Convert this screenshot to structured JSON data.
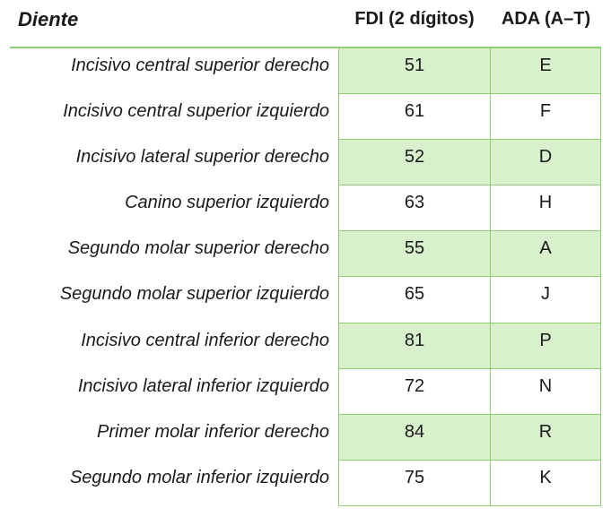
{
  "header": {
    "col_tooth": "Diente",
    "col_fdi": "FDI (2 dígitos)",
    "col_ada": "ADA (A–T)"
  },
  "rows": [
    {
      "name": "Incisivo central superior derecho",
      "fdi": "51",
      "ada": "E"
    },
    {
      "name": "Incisivo central superior izquierdo",
      "fdi": "61",
      "ada": "F"
    },
    {
      "name": "Incisivo lateral superior derecho",
      "fdi": "52",
      "ada": "D"
    },
    {
      "name": "Canino superior izquierdo",
      "fdi": "63",
      "ada": "H"
    },
    {
      "name": "Segundo molar superior derecho",
      "fdi": "55",
      "ada": "A"
    },
    {
      "name": "Segundo molar superior izquierdo",
      "fdi": "65",
      "ada": "J"
    },
    {
      "name": "Incisivo central inferior derecho",
      "fdi": "81",
      "ada": "P"
    },
    {
      "name": "Incisivo lateral inferior izquierdo",
      "fdi": "72",
      "ada": "N"
    },
    {
      "name": "Primer molar inferior derecho",
      "fdi": "84",
      "ada": "R"
    },
    {
      "name": "Segundo molar inferior izquierdo",
      "fdi": "75",
      "ada": "K"
    }
  ],
  "colors": {
    "cell_fill_green": "#d9f0cc",
    "cell_border_green": "#90cf70",
    "text": "#1a1a1a"
  }
}
